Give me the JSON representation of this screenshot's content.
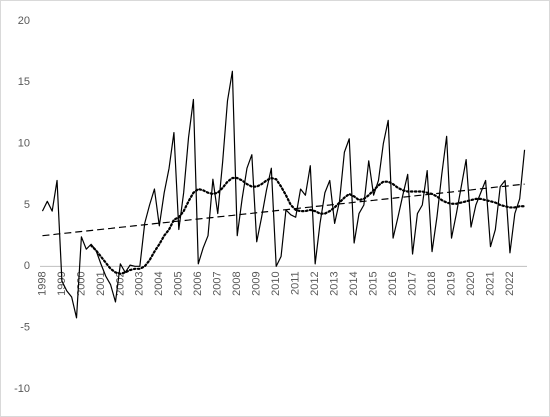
{
  "chart_data": {
    "type": "line",
    "categories": [
      "1998",
      null,
      null,
      null,
      "1999",
      null,
      null,
      null,
      "2000",
      null,
      null,
      null,
      "2001",
      null,
      null,
      null,
      "2002",
      null,
      null,
      null,
      "2003",
      null,
      null,
      null,
      "2004",
      null,
      null,
      null,
      "2005",
      null,
      null,
      null,
      "2006",
      null,
      null,
      null,
      "2007",
      null,
      null,
      null,
      "2008",
      null,
      null,
      null,
      "2009",
      null,
      null,
      null,
      "2010",
      null,
      null,
      null,
      "2011",
      null,
      null,
      null,
      "2012",
      null,
      null,
      null,
      "2013",
      null,
      null,
      null,
      "2014",
      null,
      null,
      null,
      "2015",
      null,
      null,
      null,
      "2016",
      null,
      null,
      null,
      "2017",
      null,
      null,
      null,
      "2018",
      null,
      null,
      null,
      "2019",
      null,
      null,
      null,
      "2020",
      null,
      null,
      null,
      "2021",
      null,
      null,
      null,
      "2022",
      null,
      null,
      null
    ],
    "series": [
      {
        "color": "#000000",
        "dash": "solid",
        "width": 1.2,
        "values": [
          4.5,
          5.3,
          4.5,
          7.0,
          -1.2,
          -2.0,
          -2.5,
          -4.2,
          2.4,
          1.4,
          1.8,
          1.3,
          0.2,
          -0.8,
          -1.5,
          -2.9,
          0.2,
          -0.5,
          0.1,
          0.0,
          0.0,
          3.5,
          5.0,
          6.3,
          3.3,
          6.0,
          8.0,
          10.9,
          3.0,
          6.0,
          10.5,
          13.6,
          0.2,
          1.5,
          2.5,
          7.1,
          4.3,
          8.5,
          13.5,
          15.9,
          2.5,
          5.5,
          8.0,
          9.1,
          2.0,
          4.0,
          6.2,
          8.0,
          0.0,
          0.8,
          4.6,
          4.2,
          4.0,
          6.3,
          5.8,
          8.2,
          0.2,
          3.5,
          6.0,
          7.0,
          3.5,
          5.3,
          9.3,
          10.4,
          1.9,
          4.3,
          5.0,
          8.6,
          5.8,
          7.0,
          10.0,
          11.9,
          2.3,
          4.0,
          5.8,
          7.5,
          1.0,
          4.3,
          5.0,
          7.8,
          1.2,
          4.0,
          7.5,
          10.6,
          2.3,
          4.3,
          6.5,
          8.7,
          3.2,
          5.0,
          6.0,
          7.0,
          1.6,
          3.0,
          6.5,
          7.0,
          1.1,
          4.3,
          5.5,
          9.5
        ]
      },
      {
        "color": "#000000",
        "dash": "dotted",
        "width": 2.2,
        "values": [
          null,
          null,
          null,
          null,
          null,
          null,
          null,
          null,
          null,
          null,
          1.7,
          1.3,
          0.8,
          0.3,
          -0.2,
          -0.5,
          -0.6,
          -0.5,
          -0.3,
          -0.2,
          -0.2,
          0.0,
          0.5,
          1.2,
          1.8,
          2.5,
          3.0,
          3.8,
          4.0,
          4.5,
          5.3,
          6.0,
          6.3,
          6.2,
          6.0,
          5.9,
          6.0,
          6.4,
          6.9,
          7.2,
          7.2,
          7.0,
          6.7,
          6.5,
          6.5,
          6.7,
          7.0,
          7.2,
          7.1,
          6.5,
          5.8,
          5.0,
          4.6,
          4.5,
          4.5,
          4.6,
          4.5,
          4.3,
          4.3,
          4.5,
          4.8,
          5.2,
          5.6,
          5.9,
          5.7,
          5.4,
          5.5,
          5.8,
          6.2,
          6.6,
          6.9,
          6.9,
          6.7,
          6.4,
          6.2,
          6.1,
          6.1,
          6.1,
          6.1,
          6.0,
          5.9,
          5.7,
          5.4,
          5.2,
          5.1,
          5.1,
          5.2,
          5.3,
          5.4,
          5.5,
          5.5,
          5.4,
          5.3,
          5.2,
          5.0,
          4.9,
          4.8,
          4.8,
          4.9,
          4.9
        ]
      },
      {
        "color": "#000000",
        "dash": "dashed",
        "width": 1.2,
        "values": [
          2.5,
          2.54,
          2.58,
          2.63,
          2.67,
          2.71,
          2.75,
          2.8,
          2.84,
          2.88,
          2.92,
          2.97,
          3.01,
          3.05,
          3.09,
          3.14,
          3.18,
          3.22,
          3.26,
          3.31,
          3.35,
          3.39,
          3.43,
          3.48,
          3.52,
          3.56,
          3.6,
          3.65,
          3.69,
          3.73,
          3.77,
          3.82,
          3.86,
          3.9,
          3.94,
          3.98,
          4.03,
          4.07,
          4.11,
          4.15,
          4.2,
          4.24,
          4.28,
          4.32,
          4.37,
          4.41,
          4.45,
          4.49,
          4.54,
          4.58,
          4.62,
          4.66,
          4.71,
          4.75,
          4.79,
          4.83,
          4.88,
          4.92,
          4.96,
          5.0,
          5.05,
          5.09,
          5.13,
          5.17,
          5.22,
          5.26,
          5.3,
          5.34,
          5.38,
          5.43,
          5.47,
          5.51,
          5.55,
          5.6,
          5.64,
          5.68,
          5.72,
          5.77,
          5.81,
          5.85,
          5.89,
          5.94,
          5.98,
          6.02,
          6.06,
          6.11,
          6.15,
          6.19,
          6.23,
          6.28,
          6.32,
          6.36,
          6.4,
          6.45,
          6.49,
          6.53,
          6.57,
          6.62,
          6.66,
          6.7
        ]
      }
    ],
    "ylim": [
      -10,
      20
    ],
    "yticks": [
      20,
      15,
      10,
      5,
      0,
      -5,
      -10
    ],
    "grid": false
  }
}
